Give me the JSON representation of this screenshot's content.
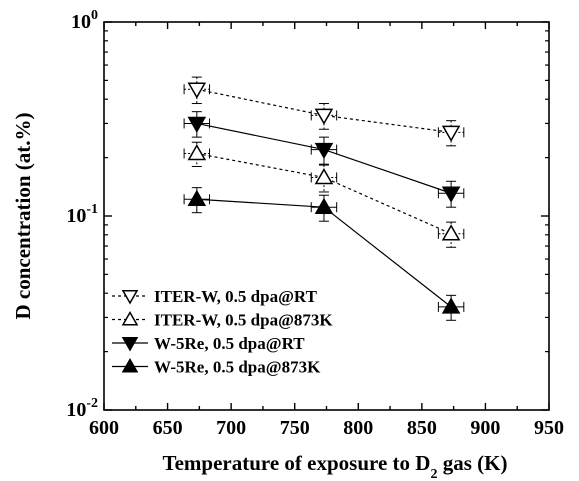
{
  "chart_data": {
    "type": "line",
    "xlabel": "Temperature of exposure to D",
    "xlabel_sub": "2",
    "xlabel_rest": " gas (K)",
    "ylabel": "D concentration  (at.%)",
    "xlim": [
      600,
      950
    ],
    "ylim": [
      0.01,
      1
    ],
    "yscale": "log",
    "x_ticks": [
      "600",
      "650",
      "700",
      "750",
      "800",
      "850",
      "900",
      "950"
    ],
    "y_ticks": [
      {
        "base": "10",
        "exp": "0",
        "value": 1
      },
      {
        "base": "10",
        "exp": "-1",
        "value": 0.1
      },
      {
        "base": "10",
        "exp": "-2",
        "value": 0.01
      }
    ],
    "legend_position": "bottom-left",
    "series": [
      {
        "name": "ITER-W, 0.5 dpa@RT",
        "marker": "triangle-down-open",
        "line": "dotted",
        "x": [
          673,
          773,
          873
        ],
        "y": [
          0.45,
          0.33,
          0.27
        ],
        "yerr": [
          0.07,
          0.05,
          0.04
        ],
        "xerr": [
          10,
          10,
          10
        ]
      },
      {
        "name": "ITER-W, 0.5 dpa@873K",
        "marker": "triangle-up-open",
        "line": "dotted",
        "x": [
          673,
          773,
          873
        ],
        "y": [
          0.21,
          0.158,
          0.081
        ],
        "yerr": [
          0.03,
          0.025,
          0.012
        ],
        "xerr": [
          10,
          10,
          10
        ]
      },
      {
        "name": "W-5Re, 0.5 dpa@RT",
        "marker": "triangle-down-filled",
        "line": "solid",
        "x": [
          673,
          773,
          873
        ],
        "y": [
          0.3,
          0.22,
          0.131
        ],
        "yerr": [
          0.045,
          0.035,
          0.02
        ],
        "xerr": [
          10,
          10,
          10
        ]
      },
      {
        "name": "W-5Re, 0.5 dpa@873K",
        "marker": "triangle-up-filled",
        "line": "solid",
        "x": [
          673,
          773,
          873
        ],
        "y": [
          0.122,
          0.111,
          0.034
        ],
        "yerr": [
          0.018,
          0.017,
          0.005
        ],
        "xerr": [
          10,
          10,
          10
        ]
      }
    ]
  }
}
